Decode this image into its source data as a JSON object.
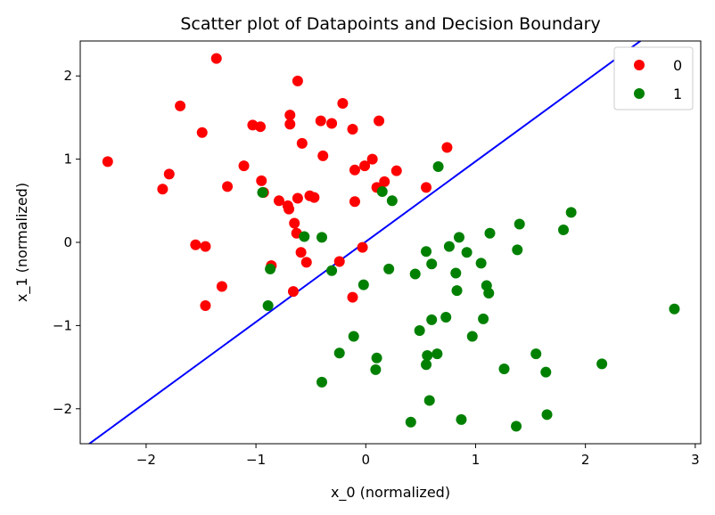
{
  "chart_data": {
    "type": "scatter",
    "title": "Scatter plot of Datapoints and Decision Boundary",
    "xlabel": "x_0 (normalized)",
    "ylabel": "x_1 (normalized)",
    "xlim": [
      -2.6,
      3.05
    ],
    "ylim": [
      -2.42,
      2.42
    ],
    "xticks": [
      -2,
      -1,
      0,
      1,
      2,
      3
    ],
    "yticks": [
      -2,
      -1,
      0,
      1,
      2
    ],
    "xtick_labels": [
      "−2",
      "−1",
      "0",
      "1",
      "2",
      "3"
    ],
    "ytick_labels": [
      "−2",
      "−1",
      "0",
      "1",
      "2"
    ],
    "grid": false,
    "legend_position": "top-right",
    "series": [
      {
        "name": "0",
        "color": "#ff0000",
        "points": [
          [
            -2.35,
            0.97
          ],
          [
            -1.85,
            0.64
          ],
          [
            -1.79,
            0.82
          ],
          [
            -1.69,
            1.64
          ],
          [
            -1.55,
            -0.03
          ],
          [
            -1.49,
            1.32
          ],
          [
            -1.46,
            -0.05
          ],
          [
            -1.46,
            -0.76
          ],
          [
            -1.31,
            -0.53
          ],
          [
            -1.26,
            0.67
          ],
          [
            -1.36,
            2.21
          ],
          [
            -1.11,
            0.92
          ],
          [
            -1.03,
            1.41
          ],
          [
            -0.96,
            1.39
          ],
          [
            -0.95,
            0.74
          ],
          [
            -0.93,
            0.6
          ],
          [
            -0.86,
            -0.28
          ],
          [
            -0.79,
            0.5
          ],
          [
            -0.71,
            0.44
          ],
          [
            -0.7,
            0.4
          ],
          [
            -0.69,
            1.42
          ],
          [
            -0.69,
            1.53
          ],
          [
            -0.66,
            -0.59
          ],
          [
            -0.65,
            0.23
          ],
          [
            -0.63,
            0.11
          ],
          [
            -0.62,
            1.94
          ],
          [
            -0.62,
            0.53
          ],
          [
            -0.59,
            -0.12
          ],
          [
            -0.58,
            1.19
          ],
          [
            -0.54,
            -0.24
          ],
          [
            -0.51,
            0.56
          ],
          [
            -0.47,
            0.54
          ],
          [
            -0.41,
            1.46
          ],
          [
            -0.39,
            1.04
          ],
          [
            -0.31,
            1.43
          ],
          [
            -0.24,
            -0.23
          ],
          [
            -0.21,
            1.67
          ],
          [
            -0.12,
            1.36
          ],
          [
            -0.12,
            -0.66
          ],
          [
            -0.1,
            0.87
          ],
          [
            -0.1,
            0.49
          ],
          [
            -0.03,
            -0.06
          ],
          [
            -0.01,
            0.92
          ],
          [
            0.06,
            1.0
          ],
          [
            0.1,
            0.66
          ],
          [
            0.12,
            1.46
          ],
          [
            0.17,
            0.73
          ],
          [
            0.28,
            0.86
          ],
          [
            0.55,
            0.66
          ],
          [
            0.74,
            1.14
          ]
        ]
      },
      {
        "name": "1",
        "color": "#008000",
        "points": [
          [
            -0.94,
            0.6
          ],
          [
            -0.89,
            -0.76
          ],
          [
            -0.87,
            -0.32
          ],
          [
            -0.56,
            0.07
          ],
          [
            -0.4,
            0.06
          ],
          [
            -0.4,
            -1.68
          ],
          [
            -0.31,
            -0.34
          ],
          [
            -0.24,
            -1.33
          ],
          [
            -0.11,
            -1.13
          ],
          [
            -0.02,
            -0.51
          ],
          [
            0.09,
            -1.53
          ],
          [
            0.1,
            -1.39
          ],
          [
            0.15,
            0.61
          ],
          [
            0.21,
            -0.32
          ],
          [
            0.24,
            0.5
          ],
          [
            0.41,
            -2.16
          ],
          [
            0.45,
            -0.38
          ],
          [
            0.49,
            -1.06
          ],
          [
            0.55,
            -0.11
          ],
          [
            0.55,
            -1.47
          ],
          [
            0.56,
            -1.36
          ],
          [
            0.58,
            -1.9
          ],
          [
            0.6,
            -0.26
          ],
          [
            0.6,
            -0.93
          ],
          [
            0.65,
            -1.34
          ],
          [
            0.66,
            0.91
          ],
          [
            0.73,
            -0.9
          ],
          [
            0.76,
            -0.05
          ],
          [
            0.82,
            -0.37
          ],
          [
            0.83,
            -0.58
          ],
          [
            0.85,
            0.06
          ],
          [
            0.87,
            -2.13
          ],
          [
            0.92,
            -0.12
          ],
          [
            0.97,
            -1.13
          ],
          [
            1.05,
            -0.25
          ],
          [
            1.07,
            -0.92
          ],
          [
            1.1,
            -0.52
          ],
          [
            1.12,
            -0.61
          ],
          [
            1.13,
            0.11
          ],
          [
            1.26,
            -1.52
          ],
          [
            1.37,
            -2.21
          ],
          [
            1.38,
            -0.09
          ],
          [
            1.4,
            0.22
          ],
          [
            1.55,
            -1.34
          ],
          [
            1.64,
            -1.56
          ],
          [
            1.65,
            -2.07
          ],
          [
            1.8,
            0.15
          ],
          [
            1.87,
            0.36
          ],
          [
            2.15,
            -1.46
          ],
          [
            2.81,
            -0.8
          ]
        ]
      }
    ],
    "decision_boundary": {
      "color": "#0000ff",
      "points": [
        [
          -2.6,
          -2.5
        ],
        [
          3.05,
          2.95
        ]
      ]
    }
  }
}
